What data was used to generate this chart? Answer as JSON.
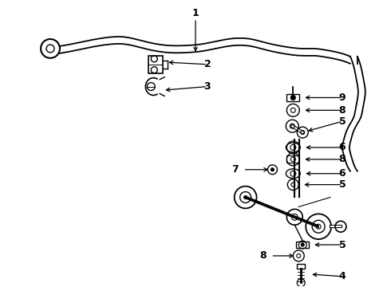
{
  "background_color": "#ffffff",
  "fig_width": 4.9,
  "fig_height": 3.6,
  "dpi": 100
}
